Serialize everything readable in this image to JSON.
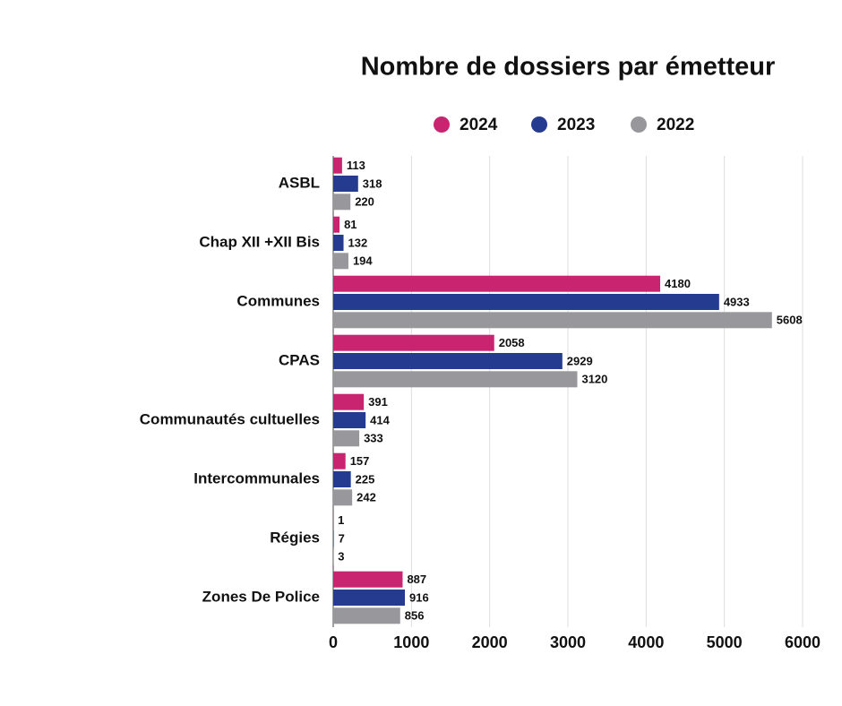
{
  "chart_data": {
    "type": "bar",
    "orientation": "horizontal",
    "title": "Nombre de dossiers par émetteur",
    "categories": [
      "ASBL",
      "Chap XII +XII Bis",
      "Communes",
      "CPAS",
      "Communautés cultuelles",
      "Intercommunales",
      "Régies",
      "Zones De Police"
    ],
    "series": [
      {
        "name": "2024",
        "color": "#c8246f",
        "values": [
          113,
          81,
          4180,
          2058,
          391,
          157,
          1,
          887
        ]
      },
      {
        "name": "2023",
        "color": "#243b8f",
        "values": [
          318,
          132,
          4933,
          2929,
          414,
          225,
          7,
          916
        ]
      },
      {
        "name": "2022",
        "color": "#98979c",
        "values": [
          220,
          194,
          5608,
          3120,
          333,
          242,
          3,
          856
        ]
      }
    ],
    "xlim": [
      0,
      6000
    ],
    "xticks": [
      0,
      1000,
      2000,
      3000,
      4000,
      5000,
      6000
    ],
    "grid": true,
    "legend": "top"
  }
}
